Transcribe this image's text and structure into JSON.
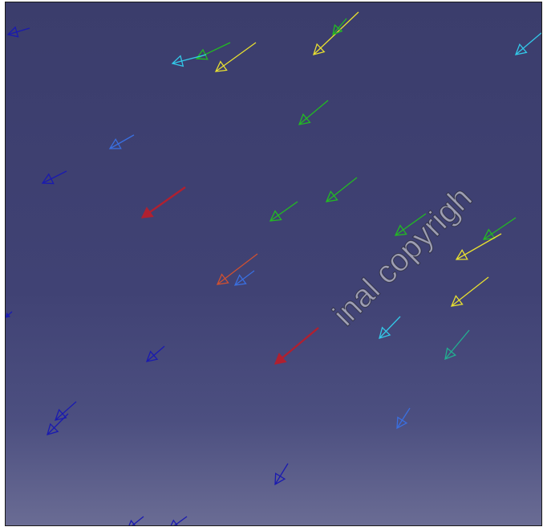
{
  "viewport": {
    "background_top": "#3b3d6c",
    "background_bottom": "#6a6c94",
    "border_color": "#1a1a1a"
  },
  "watermark": {
    "text": "inal copyrigh",
    "color": "#ebebeb"
  },
  "vector_colors": {
    "dark_blue": "#1a1ab0",
    "blue": "#3a6fe0",
    "cyan": "#33c8e8",
    "green": "#22bb22",
    "yellow": "#e8e030",
    "red": "#b02030",
    "orange_red": "#d05030",
    "teal": "#22b090"
  }
}
